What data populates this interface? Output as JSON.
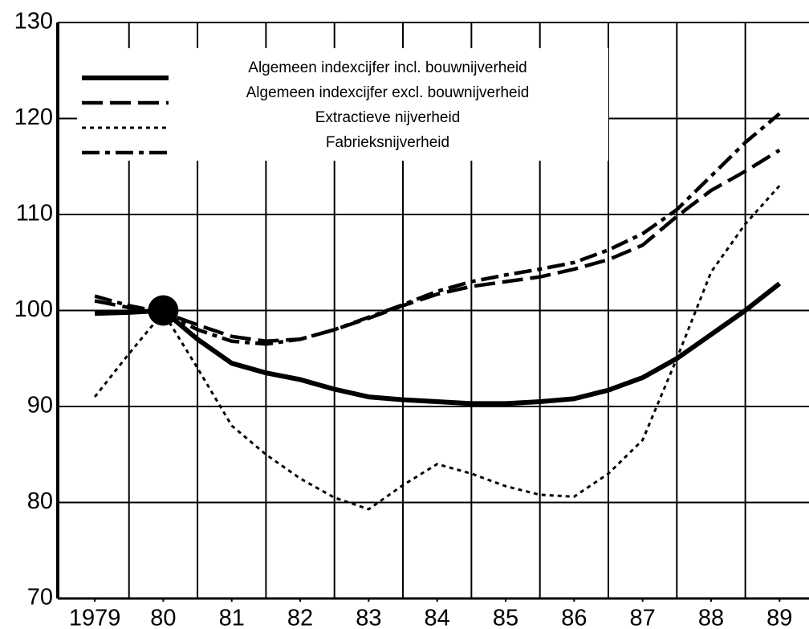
{
  "chart_data": {
    "type": "line",
    "x": [
      1979,
      1979.5,
      1980,
      1980.5,
      1981,
      1981.5,
      1982,
      1982.5,
      1983,
      1983.5,
      1984,
      1984.5,
      1985,
      1985.5,
      1986,
      1986.5,
      1987,
      1987.5,
      1988,
      1988.5,
      1989
    ],
    "series": [
      {
        "name": "Algemeen indexcijfer incl. bouwnijverheid",
        "color": "#000000",
        "style": "solid",
        "values": [
          99.7,
          99.8,
          100,
          97,
          94.5,
          93.5,
          92.8,
          91.8,
          91,
          90.7,
          90.5,
          90.3,
          90.3,
          90.5,
          90.8,
          91.7,
          93,
          95,
          97.5,
          100,
          102.8
        ]
      },
      {
        "name": "Algemeen indexcijfer excl. bouwnijverheid",
        "color": "#000000",
        "style": "dashed",
        "values": [
          101,
          100.3,
          99.8,
          98.5,
          97.3,
          96.8,
          97,
          98,
          99.2,
          100.5,
          101.7,
          102.5,
          103,
          103.5,
          104.3,
          105.3,
          106.8,
          109.8,
          112.5,
          114.5,
          116.7
        ]
      },
      {
        "name": "Extractieve nijverheid",
        "color": "#000000",
        "style": "dotted",
        "values": [
          91,
          95.5,
          99.8,
          94,
          88,
          85,
          82.5,
          80.5,
          79.3,
          81.8,
          84,
          83,
          81.7,
          80.8,
          80.6,
          83,
          86.5,
          95,
          104,
          109,
          113
        ]
      },
      {
        "name": "Fabrieksnijverheid",
        "color": "#000000",
        "style": "dashdot",
        "values": [
          101.5,
          100.5,
          99.8,
          98,
          96.8,
          96.5,
          97,
          98,
          99.3,
          100.6,
          102,
          103,
          103.7,
          104.3,
          105,
          106.3,
          108,
          110.5,
          114,
          117.5,
          120.5
        ]
      }
    ],
    "marker": {
      "x": 1980,
      "y": 100
    },
    "xlim": [
      1978.46,
      1989.43
    ],
    "ylim": [
      70,
      130
    ],
    "xticks": [
      {
        "value": 1979,
        "label": "1979"
      },
      {
        "value": 1980,
        "label": "80"
      },
      {
        "value": 1981,
        "label": "81"
      },
      {
        "value": 1982,
        "label": "82"
      },
      {
        "value": 1983,
        "label": "83"
      },
      {
        "value": 1984,
        "label": "84"
      },
      {
        "value": 1985,
        "label": "85"
      },
      {
        "value": 1986,
        "label": "86"
      },
      {
        "value": 1987,
        "label": "87"
      },
      {
        "value": 1988,
        "label": "88"
      },
      {
        "value": 1989,
        "label": "89"
      }
    ],
    "xgrid": [
      1979.5,
      1980.5,
      1981.5,
      1982.5,
      1983.5,
      1984.5,
      1985.5,
      1986.5,
      1987.5,
      1988.5
    ],
    "yticks": [
      70,
      80,
      90,
      100,
      110,
      120,
      130
    ],
    "grid": true,
    "legend": "upper left"
  }
}
